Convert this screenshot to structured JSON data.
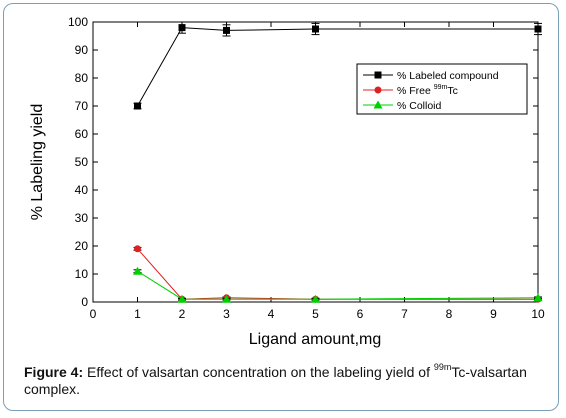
{
  "chart_data": {
    "type": "line",
    "xlabel": "Ligand amount,mg",
    "ylabel": "% Labeling yield",
    "xlim": [
      0,
      10
    ],
    "ylim": [
      0,
      100
    ],
    "xticks": [
      0,
      1,
      2,
      3,
      4,
      5,
      6,
      7,
      8,
      9,
      10
    ],
    "yticks": [
      0,
      10,
      20,
      30,
      40,
      50,
      60,
      70,
      80,
      90,
      100
    ],
    "x": [
      1,
      2,
      3,
      5,
      10
    ],
    "legend_position": "top-right",
    "series": [
      {
        "name": "% Labeled compound",
        "legend_label": "% Labeled compound",
        "color": "#000000",
        "marker": "square",
        "values": [
          70,
          98,
          97,
          97.5,
          97.5
        ],
        "errors": [
          1,
          2,
          2,
          2,
          2
        ]
      },
      {
        "name": "% Free 99mTc",
        "legend_label": "% Free ",
        "legend_sup": "99m",
        "legend_after": "Tc",
        "color": "#e02020",
        "marker": "circle",
        "values": [
          19,
          1,
          1.5,
          1,
          1
        ],
        "errors": [
          0.5,
          0.3,
          0.3,
          0.3,
          0.3
        ]
      },
      {
        "name": "% Colloid",
        "legend_label": "% Colloid",
        "color": "#00d000",
        "marker": "triangle",
        "values": [
          11,
          1,
          1,
          1,
          1.5
        ],
        "errors": [
          0.5,
          0.3,
          0.3,
          0.3,
          0.3
        ]
      }
    ]
  },
  "caption": {
    "figure_label": "Figure 4:",
    "text_before": " Effect of  valsartan concentration on the labeling yield of ",
    "superscript": "99m",
    "text_after": "Tc-valsartan complex."
  }
}
